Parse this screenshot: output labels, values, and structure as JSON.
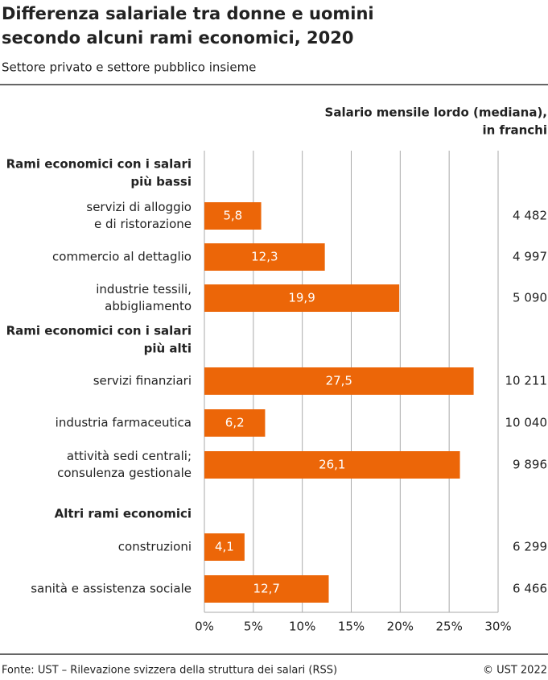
{
  "chart_data": {
    "type": "bar",
    "title": [
      "Differenza salariale tra donne e uomini",
      "secondo alcuni rami economici, 2020"
    ],
    "subtitle": "Settore privato e settore pubblico insieme",
    "column_header": [
      "Salario mensile lordo (mediana),",
      "in franchi"
    ],
    "color": "#ec6608",
    "xlim": [
      0,
      30
    ],
    "xticks": [
      {
        "value": 0,
        "label": "0%"
      },
      {
        "value": 5,
        "label": "5%"
      },
      {
        "value": 10,
        "label": "10%"
      },
      {
        "value": 15,
        "label": "15%"
      },
      {
        "value": 20,
        "label": "20%"
      },
      {
        "value": 25,
        "label": "25%"
      },
      {
        "value": 30,
        "label": "30%"
      }
    ],
    "grid": true,
    "groups": [
      {
        "name": [
          "Rami economici con i salari",
          "più bassi"
        ],
        "categories": [
          [
            "servizi di alloggio",
            "e di ristorazione"
          ],
          [
            "commercio al dettaglio"
          ],
          [
            "industrie tessili,",
            "abbigliamento"
          ]
        ],
        "values": [
          5.8,
          12.3,
          19.9
        ],
        "value_labels": [
          "5,8",
          "12,3",
          "19,9"
        ],
        "salaries": [
          "4 482",
          "4 997",
          "5 090"
        ]
      },
      {
        "name": [
          "Rami economici con i salari",
          "più alti"
        ],
        "categories": [
          [
            "servizi finanziari"
          ],
          [
            "industria farmaceutica"
          ],
          [
            "attività sedi centrali;",
            "consulenza gestionale"
          ]
        ],
        "values": [
          27.5,
          6.2,
          26.1
        ],
        "value_labels": [
          "27,5",
          "6,2",
          "26,1"
        ],
        "salaries": [
          "10 211",
          "10 040",
          "9 896"
        ]
      },
      {
        "name": [
          "Altri rami economici"
        ],
        "categories": [
          [
            "construzioni"
          ],
          [
            "sanità e assistenza sociale"
          ]
        ],
        "values": [
          4.1,
          12.7
        ],
        "value_labels": [
          "4,1",
          "12,7"
        ],
        "salaries": [
          "6 299",
          "6 466"
        ]
      }
    ],
    "source": "Fonte: UST – Rilevazione svizzera della struttura dei salari (RSS)",
    "copyright": "© UST 2022"
  }
}
